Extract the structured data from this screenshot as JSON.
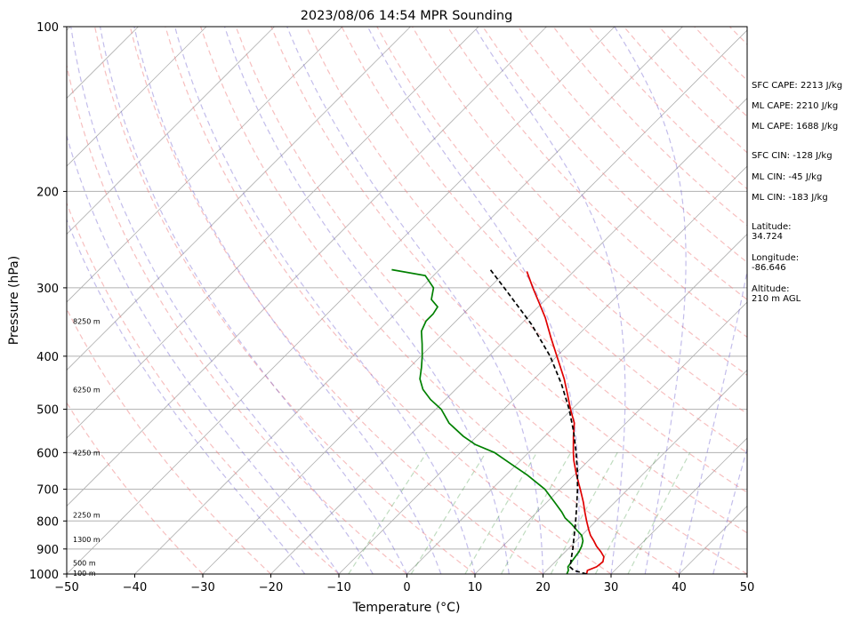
{
  "chart_data": {
    "type": "line",
    "chart_kind": "Skew-T log-P sounding diagram",
    "title": "2023/08/06 14:54 MPR Sounding",
    "xlabel": "Temperature (°C)",
    "ylabel": "Pressure (hPa)",
    "xlim": [
      -50,
      50
    ],
    "ylim": [
      1000,
      100
    ],
    "y_scale": "log",
    "x_ticks": [
      "−50",
      "−40",
      "−30",
      "−20",
      "−10",
      "0",
      "10",
      "20",
      "30",
      "40",
      "50"
    ],
    "y_ticks": [
      "100",
      "200",
      "300",
      "400",
      "500",
      "600",
      "700",
      "800",
      "900",
      "1000"
    ],
    "grid": "horizontal isobars",
    "height_labels": [
      {
        "p": 997,
        "label": "100 m"
      },
      {
        "p": 955,
        "label": "500 m"
      },
      {
        "p": 865,
        "label": "1300 m"
      },
      {
        "p": 780,
        "label": "2250 m"
      },
      {
        "p": 600,
        "label": "4250 m"
      },
      {
        "p": 460,
        "label": "6250 m"
      },
      {
        "p": 345,
        "label": "8250 m"
      }
    ],
    "annotations": [
      {
        "key": "sfc_cape",
        "text": "SFC CAPE: 2213 J/kg"
      },
      {
        "key": "ml_cape",
        "text": "ML CAPE: 2210 J/kg"
      },
      {
        "key": "mu_cape",
        "text": "ML CAPE: 1688 J/kg"
      },
      {
        "key": "sfc_cin",
        "text": "SFC CIN: -128 J/kg"
      },
      {
        "key": "ml_cin",
        "text": "ML CIN: -45 J/kg"
      },
      {
        "key": "mu_cin",
        "text": "ML CIN: -183 J/kg"
      },
      {
        "key": "lat",
        "text": "Latitude:\n34.724"
      },
      {
        "key": "lon",
        "text": "Longitude:\n-86.646"
      },
      {
        "key": "alt",
        "text": "Altitude:\n210 m AGL"
      }
    ],
    "series": [
      {
        "color": "#e00000",
        "points": [
          [
            1000,
            26.4
          ],
          [
            985,
            26.0
          ],
          [
            970,
            26.8
          ],
          [
            950,
            27.0
          ],
          [
            930,
            26.4
          ],
          [
            910,
            25.2
          ],
          [
            890,
            23.8
          ],
          [
            870,
            22.6
          ],
          [
            850,
            21.3
          ],
          [
            830,
            20.2
          ],
          [
            800,
            18.6
          ],
          [
            770,
            17.0
          ],
          [
            740,
            15.4
          ],
          [
            700,
            13.0
          ],
          [
            660,
            10.4
          ],
          [
            620,
            7.8
          ],
          [
            600,
            6.6
          ],
          [
            560,
            4.2
          ],
          [
            530,
            2.4
          ],
          [
            500,
            -0.2
          ],
          [
            470,
            -2.8
          ],
          [
            440,
            -5.6
          ],
          [
            400,
            -10.0
          ],
          [
            370,
            -13.6
          ],
          [
            340,
            -17.4
          ],
          [
            320,
            -20.4
          ],
          [
            300,
            -23.6
          ],
          [
            280,
            -26.9
          ]
        ]
      },
      {
        "color": "#008000",
        "points": [
          [
            1000,
            23.5
          ],
          [
            985,
            23.2
          ],
          [
            970,
            22.6
          ],
          [
            950,
            22.4
          ],
          [
            930,
            22.2
          ],
          [
            910,
            22.0
          ],
          [
            890,
            21.6
          ],
          [
            870,
            21.0
          ],
          [
            850,
            20.0
          ],
          [
            830,
            18.4
          ],
          [
            810,
            16.8
          ],
          [
            790,
            15.0
          ],
          [
            770,
            13.6
          ],
          [
            740,
            11.2
          ],
          [
            700,
            7.8
          ],
          [
            660,
            3.2
          ],
          [
            630,
            -0.8
          ],
          [
            600,
            -5.0
          ],
          [
            580,
            -9.0
          ],
          [
            560,
            -12.0
          ],
          [
            530,
            -16.0
          ],
          [
            500,
            -19.2
          ],
          [
            480,
            -22.2
          ],
          [
            460,
            -24.8
          ],
          [
            440,
            -26.8
          ],
          [
            420,
            -28.2
          ],
          [
            400,
            -29.8
          ],
          [
            380,
            -31.6
          ],
          [
            360,
            -33.6
          ],
          [
            345,
            -34.4
          ],
          [
            335,
            -34.4
          ],
          [
            325,
            -34.8
          ],
          [
            315,
            -36.8
          ],
          [
            300,
            -38.2
          ],
          [
            285,
            -41.2
          ],
          [
            278,
            -47.0
          ]
        ]
      },
      {
        "color": "#000000",
        "dashed": true,
        "points": [
          [
            1000,
            26.4
          ],
          [
            985,
            24.0
          ],
          [
            970,
            22.9
          ],
          [
            950,
            22.3
          ],
          [
            925,
            21.5
          ],
          [
            900,
            20.7
          ],
          [
            875,
            19.8
          ],
          [
            850,
            18.9
          ],
          [
            800,
            17.0
          ],
          [
            750,
            14.9
          ],
          [
            700,
            12.6
          ],
          [
            650,
            10.0
          ],
          [
            600,
            7.0
          ],
          [
            550,
            3.6
          ],
          [
            500,
            -0.4
          ],
          [
            450,
            -5.2
          ],
          [
            400,
            -11.0
          ],
          [
            350,
            -18.4
          ],
          [
            300,
            -27.8
          ],
          [
            278,
            -32.5
          ]
        ]
      }
    ]
  }
}
